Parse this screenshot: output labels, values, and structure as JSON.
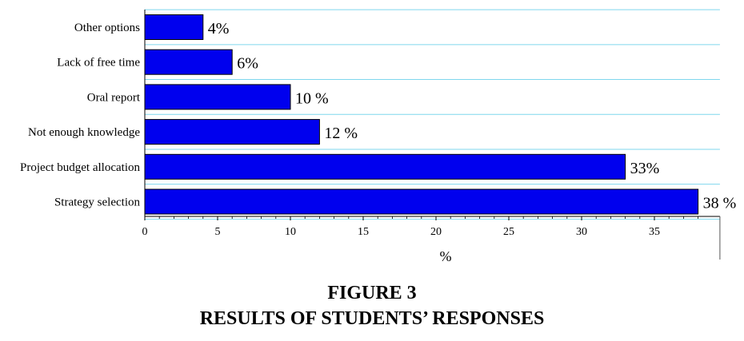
{
  "caption": {
    "figure_number": "FIGURE 3",
    "figure_title": "RESULTS OF STUDENTS’ RESPONSES"
  },
  "chart_data": {
    "type": "bar",
    "orientation": "horizontal",
    "categories": [
      "Other options",
      "Lack of free time",
      "Oral report",
      "Not enough knowledge",
      "Project budget allocation",
      "Strategy selection"
    ],
    "values": [
      4,
      6,
      10,
      12,
      33,
      38
    ],
    "value_labels": [
      "4%",
      "6%",
      "10 %",
      "12 %",
      "33%",
      "38 %"
    ],
    "xlabel": "%",
    "ylabel": "",
    "xlim": [
      0,
      39.5
    ],
    "xticks": [
      0,
      5,
      10,
      15,
      20,
      25,
      30,
      35
    ],
    "grid": true,
    "bar_color": "#0000ee",
    "grid_color": "#7fd7ee"
  }
}
